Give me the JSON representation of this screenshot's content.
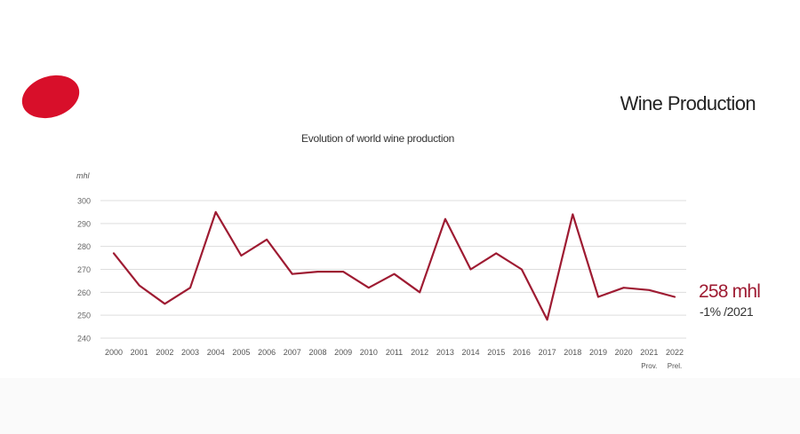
{
  "page": {
    "title": "Wine Production"
  },
  "annotation": {
    "value": "258 mhl",
    "change": "-1% /2021"
  },
  "chart_data": {
    "type": "line",
    "title": "Evolution of world wine production",
    "ylabel": "mhl",
    "xlabel": "",
    "ylim": [
      240,
      300
    ],
    "yticks": [
      240,
      250,
      260,
      270,
      280,
      290,
      300
    ],
    "grid": true,
    "categories": [
      "2000",
      "2001",
      "2002",
      "2003",
      "2004",
      "2005",
      "2006",
      "2007",
      "2008",
      "2009",
      "2010",
      "2011",
      "2012",
      "2013",
      "2014",
      "2015",
      "2016",
      "2017",
      "2018",
      "2019",
      "2020",
      "2021",
      "2022"
    ],
    "category_notes": [
      "",
      "",
      "",
      "",
      "",
      "",
      "",
      "",
      "",
      "",
      "",
      "",
      "",
      "",
      "",
      "",
      "",
      "",
      "",
      "",
      "",
      "Prov.",
      "Prel."
    ],
    "series": [
      {
        "color": "#9e1b32",
        "values": [
          277,
          263,
          255,
          262,
          295,
          276,
          283,
          268,
          269,
          269,
          262,
          268,
          260,
          292,
          270,
          277,
          270,
          248,
          294,
          258,
          262,
          261,
          258
        ]
      }
    ]
  }
}
